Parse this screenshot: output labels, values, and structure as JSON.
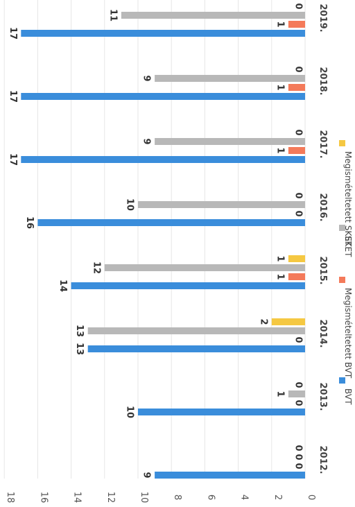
{
  "chart_data": {
    "type": "bar",
    "orientation": "rotated-90-clockwise",
    "categories": [
      "2012.",
      "2013.",
      "2014.",
      "2015.",
      "2016.",
      "2017.",
      "2018.",
      "2019."
    ],
    "series": [
      {
        "name": "BVT",
        "color": "#3a8ddb",
        "values": [
          9,
          10,
          13,
          14,
          16,
          17,
          17,
          17
        ]
      },
      {
        "name": "Megismételtetett BVT",
        "color": "#f47a5a",
        "values": [
          0,
          0,
          0,
          1,
          0,
          1,
          1,
          1
        ]
      },
      {
        "name": "SKET",
        "color": "#b8b8b8",
        "values": [
          0,
          1,
          13,
          12,
          10,
          9,
          9,
          11
        ]
      },
      {
        "name": "Megismételtetett SKET",
        "color": "#f5c842",
        "values": [
          0,
          0,
          2,
          1,
          0,
          0,
          0,
          0
        ]
      }
    ],
    "yticks": [
      "0",
      "2",
      "4",
      "6",
      "8",
      "10",
      "12",
      "14",
      "16",
      "18"
    ],
    "ylim": [
      0,
      18
    ],
    "grid": true,
    "legend": "bottom"
  }
}
